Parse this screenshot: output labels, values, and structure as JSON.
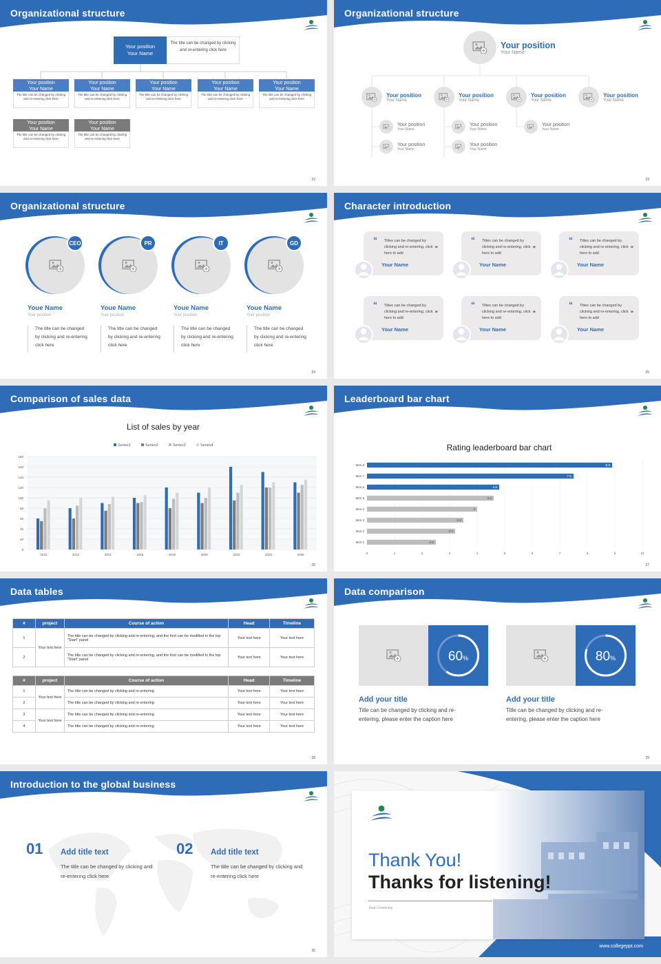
{
  "colors": {
    "accent": "#2f6cb8",
    "gray": "#7b7b7b",
    "light": "#e4e3e4"
  },
  "s22": {
    "title": "Organizational structure",
    "page": "22",
    "top": {
      "head": "Your position\nYour Name",
      "desc": "The title can be changed by clicking and re-entering click here"
    },
    "row1": [
      {
        "h": "Your position\nYour Name",
        "d": "The title can be changed by clicking and re-entering click here"
      },
      {
        "h": "Your position\nYour Name",
        "d": "The title can be changed by clicking and re-entering click here"
      },
      {
        "h": "Your position\nYour Name",
        "d": "The title can be changed by clicking and re-entering click here"
      },
      {
        "h": "Your position\nYour Name",
        "d": "The title can be changed by clicking and re-entering click here"
      },
      {
        "h": "Your position\nYour Name",
        "d": "The title can be changed by clicking and re-entering click here"
      }
    ],
    "row2": [
      {
        "h": "Your position\nYour Name",
        "d": "The title can be changed by clicking and re-entering click here"
      },
      {
        "h": "Your position\nYour Name",
        "d": "The title can be changed by clicking and re-entering click here"
      }
    ]
  },
  "s23": {
    "title": "Organizational structure",
    "page": "23",
    "top": {
      "pos": "Your position",
      "name": "Your Name"
    },
    "row": [
      {
        "pos": "Your position",
        "name": "Your Name"
      },
      {
        "pos": "Your position",
        "name": "Your Name"
      },
      {
        "pos": "Your position",
        "name": "Your Name"
      },
      {
        "pos": "Your position",
        "name": "Your Name"
      }
    ],
    "sub": [
      {
        "pos": "Your position",
        "name": "Your Name"
      },
      {
        "pos": "Your position",
        "name": "Your Name"
      },
      {
        "pos": "Your position",
        "name": "Your Name"
      },
      {
        "pos": "Your position",
        "name": "Your Name"
      },
      {
        "pos": "Your position",
        "name": "Your Name"
      }
    ]
  },
  "s24": {
    "title": "Organizational structure",
    "page": "24",
    "people": [
      {
        "tag": "CEO",
        "name": "Youe Name",
        "pos": "Your position",
        "desc": "The title can be changed by clicking and re-entering click here"
      },
      {
        "tag": "PR",
        "name": "Youe Name",
        "pos": "Your position",
        "desc": "The title can be changed by clicking and re-entering click here"
      },
      {
        "tag": "IT",
        "name": "Youe Name",
        "pos": "Your position",
        "desc": "The title can be changed by clicking and re-entering click here"
      },
      {
        "tag": "GD",
        "name": "Youe Name",
        "pos": "Your position",
        "desc": "The title can be changed by clicking and re-entering click here"
      }
    ]
  },
  "s25": {
    "title": "Character introduction",
    "page": "25",
    "quotes": [
      {
        "text": "Titles can be changed by clicking and re-entering, click here to add",
        "name": "Your Name"
      },
      {
        "text": "Titles can be changed by clicking and re-entering, click here to add",
        "name": "Your Name"
      },
      {
        "text": "Titles can be changed by clicking and re-entering, click here to add",
        "name": "Your Name"
      },
      {
        "text": "Titles can be changed by clicking and re-entering, click here to add",
        "name": "Your Name"
      },
      {
        "text": "Titles can be changed by clicking and re-entering, click here to add",
        "name": "Your Name"
      },
      {
        "text": "Titles can be changed by clicking and re-entering, click here to add",
        "name": "Your Name"
      }
    ]
  },
  "s26": {
    "title": "Comparison of sales data",
    "page": "26"
  },
  "s27": {
    "title": "Leaderboard bar chart",
    "page": "27"
  },
  "chart_data": [
    {
      "type": "bar",
      "title": "List of sales by year",
      "categories": [
        "2010",
        "2012",
        "2014",
        "2016",
        "2018",
        "2020",
        "2022",
        "2024",
        "2026"
      ],
      "ylim": [
        0,
        180
      ],
      "yticks": [
        0,
        20,
        40,
        60,
        80,
        100,
        120,
        140,
        160,
        180
      ],
      "legend": "top",
      "series": [
        {
          "name": "Series1",
          "color": "#2f6cb8",
          "values": [
            60,
            80,
            90,
            100,
            120,
            110,
            160,
            150,
            130
          ]
        },
        {
          "name": "Series2",
          "color": "#7b7b7b",
          "values": [
            55,
            60,
            75,
            90,
            80,
            90,
            95,
            120,
            110
          ]
        },
        {
          "name": "Series3",
          "color": "#bcbcbc",
          "values": [
            80,
            85,
            88,
            92,
            98,
            100,
            110,
            120,
            125
          ]
        },
        {
          "name": "Series4",
          "color": "#d6d6d6",
          "values": [
            95,
            100,
            102,
            105,
            110,
            120,
            125,
            130,
            135
          ]
        }
      ]
    },
    {
      "type": "bar",
      "orientation": "horizontal",
      "title": "Rating leaderboard bar chart",
      "categories": [
        "Item 1",
        "Item 2",
        "Item 3",
        "Item 4",
        "Item 5",
        "Item 6",
        "Item 7",
        "Item 8"
      ],
      "values": [
        2.5,
        3.2,
        3.5,
        4,
        4.6,
        4.8,
        7.5,
        8.9
      ],
      "labels": [
        "2.5",
        "3.2",
        "3.5",
        "4",
        "4.6",
        "4.8",
        "7.5",
        "8.9"
      ],
      "xlim": [
        0,
        10
      ],
      "xticks": [
        0,
        1,
        2,
        3,
        4,
        5,
        6,
        7,
        8,
        9,
        10
      ]
    }
  ],
  "s28": {
    "title": "Data tables",
    "page": "28",
    "t1": {
      "headers": [
        "#",
        "project",
        "Course of action",
        "Head",
        "Timeline"
      ],
      "group": "Your text here",
      "rows": [
        {
          "n": "1",
          "course": "The title can be changed by clicking and re-entering, and the font can be modified in the top \"Start\" panel",
          "head": "Your text here",
          "time": "Your text here"
        },
        {
          "n": "2",
          "course": "The title can be changed by clicking and re-entering, and the font can be modified in the top \"Start\" panel",
          "head": "Your text here",
          "time": "Your text here"
        }
      ]
    },
    "t2": {
      "headers": [
        "#",
        "project",
        "Course of action",
        "Head",
        "Timeline"
      ],
      "groups": [
        "Your text here",
        "Your text here"
      ],
      "rows": [
        {
          "n": "1",
          "course": "The title can be changed by clicking and re-entering",
          "head": "Your text here",
          "time": "Your text here"
        },
        {
          "n": "2",
          "course": "The title can be changed by clicking and re-entering",
          "head": "Your text here",
          "time": "Your text here"
        },
        {
          "n": "3",
          "course": "The title can be changed by clicking and re-entering",
          "head": "Your text here",
          "time": "Your text here"
        },
        {
          "n": "4",
          "course": "The title can be changed by clicking and re-entering",
          "head": "Your text here",
          "time": "Your text here"
        }
      ]
    }
  },
  "s29": {
    "title": "Data comparison",
    "page": "29",
    "cards": [
      {
        "value": "60",
        "unit": "%",
        "progress": 0.6,
        "title": "Add your title",
        "desc": "Title can be changed by clicking and re-entering, please enter the caption here"
      },
      {
        "value": "80",
        "unit": "%",
        "progress": 0.8,
        "title": "Add your title",
        "desc": "Title can be changed by clicking and re-entering, please enter the caption here"
      }
    ]
  },
  "s30": {
    "title": "Introduction to the global business",
    "page": "30",
    "items": [
      {
        "num": "01",
        "title": "Add title text",
        "desc": "The title can be changed by clicking and re-entering click here"
      },
      {
        "num": "02",
        "title": "Add title text",
        "desc": "The title can be changed by clicking and re-entering click here"
      }
    ]
  },
  "s31": {
    "line1": "Thank You!",
    "line2": "Thanks for listening!",
    "uni": "Jinan University",
    "url": "www.collegeppt.com"
  }
}
